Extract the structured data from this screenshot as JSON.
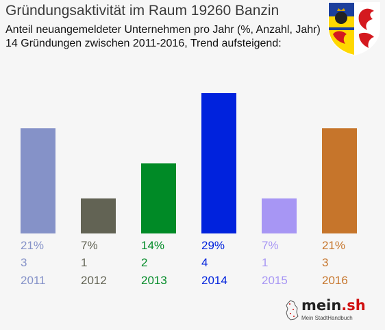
{
  "chart_data": {
    "type": "bar",
    "title": "Gründungsaktivität im Raum 19260 Banzin",
    "subtitle_lines": [
      "Anteil neuangemeldeter Unternehmen pro Jahr (%, Anzahl, Jahr)",
      "14 Gründungen zwischen 2011-2016, Trend aufsteigend:"
    ],
    "categories": [
      "2011",
      "2012",
      "2013",
      "2014",
      "2015",
      "2016"
    ],
    "percent_labels": [
      "21%",
      "7%",
      "14%",
      "29%",
      "7%",
      "21%"
    ],
    "values": [
      3,
      1,
      2,
      4,
      1,
      3
    ],
    "colors": [
      "#8592c8",
      "#626354",
      "#008a26",
      "#0022dd",
      "#a796f4",
      "#c6752b"
    ],
    "ylim": [
      0,
      4
    ],
    "grid": false,
    "legend": "none"
  },
  "logo": {
    "name": "mein",
    "dot_sh": ".sh",
    "tagline": "Mein StadtHandbuch"
  },
  "coat_of_arms_icon": "mecklenburg-vorpommern-coat-of-arms-icon"
}
